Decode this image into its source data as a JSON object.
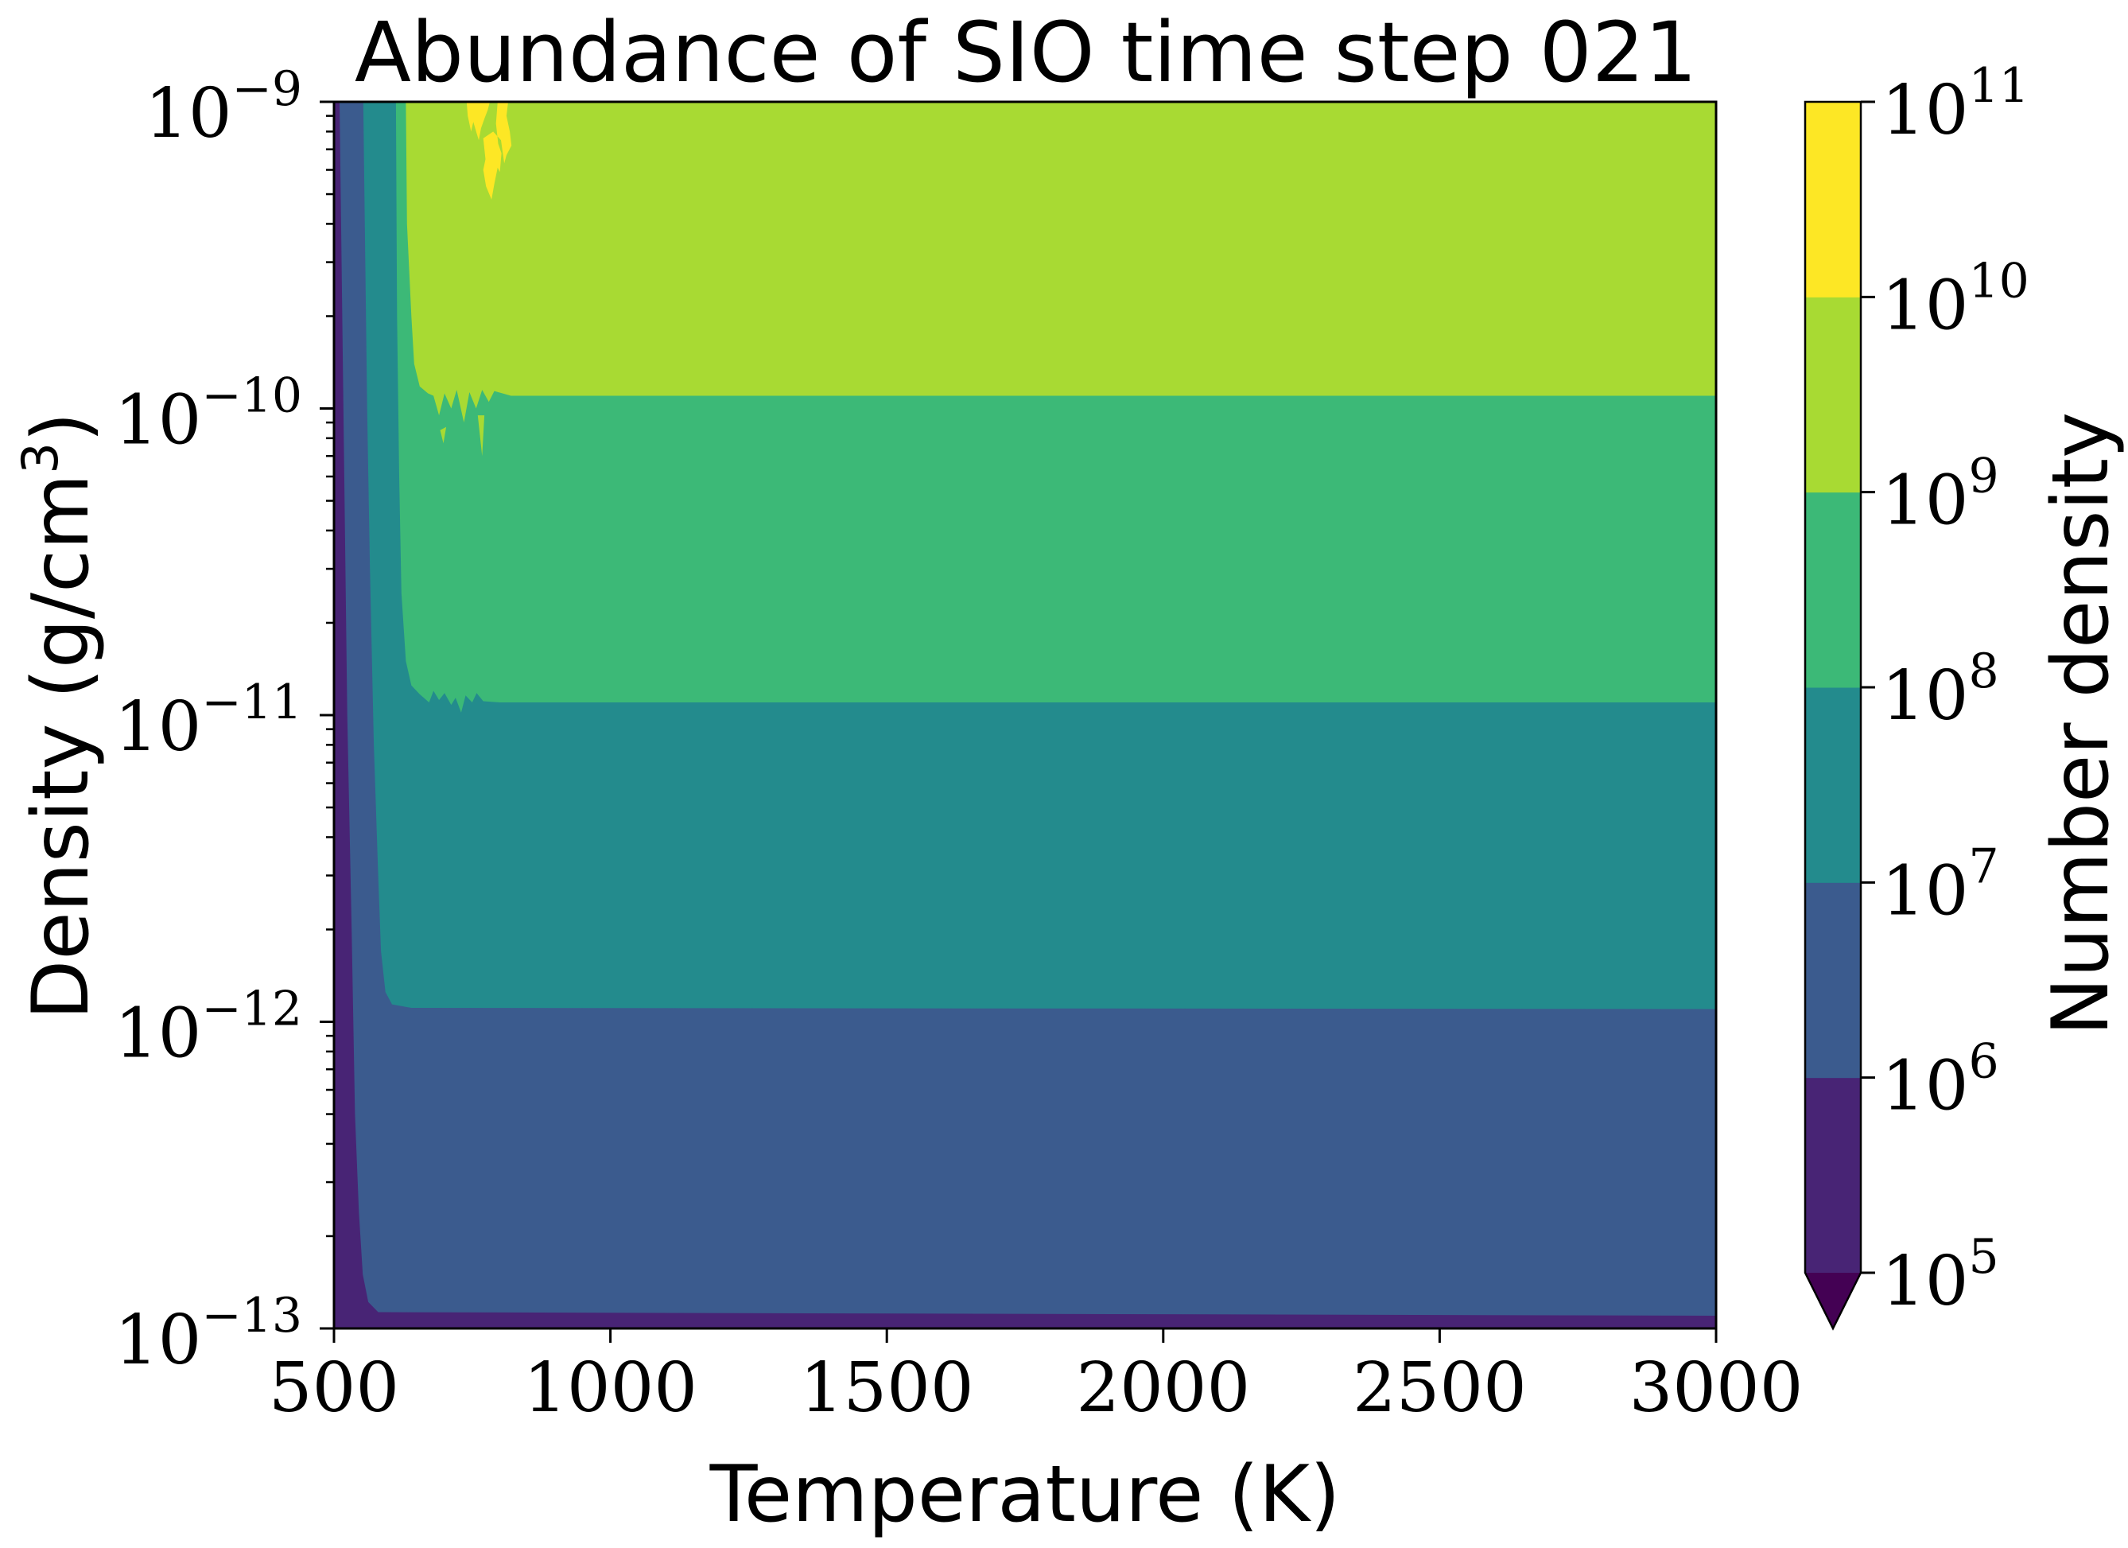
{
  "chart_data": {
    "type": "contourf",
    "title": "Abundance of SIO time step 021",
    "xlabel": "Temperature (K)",
    "ylabel": "Density (g/cm³)",
    "ylabel_base": "Density (g/cm",
    "ylabel_exp": "3",
    "ylabel_close": ")",
    "xlim": [
      500,
      3000
    ],
    "ylim": [
      1e-13,
      1e-09
    ],
    "yscale": "log",
    "grid": false,
    "x_ticks": [
      {
        "value": 500,
        "label": "500"
      },
      {
        "value": 1000,
        "label": "1000"
      },
      {
        "value": 1500,
        "label": "1500"
      },
      {
        "value": 2000,
        "label": "2000"
      },
      {
        "value": 2500,
        "label": "2500"
      },
      {
        "value": 3000,
        "label": "3000"
      }
    ],
    "y_ticks": [
      {
        "value": 1e-13,
        "base": "10",
        "exp": "−13"
      },
      {
        "value": 1e-12,
        "base": "10",
        "exp": "−12"
      },
      {
        "value": 1e-11,
        "base": "10",
        "exp": "−11"
      },
      {
        "value": 1e-10,
        "base": "10",
        "exp": "−10"
      },
      {
        "value": 1e-09,
        "base": "10",
        "exp": "−9"
      }
    ],
    "colorbar": {
      "label": "Number density",
      "scale": "log",
      "extend": "min",
      "under_color": "#440154",
      "levels": [
        {
          "exp": "5",
          "value": 100000.0
        },
        {
          "exp": "6",
          "value": 1000000.0
        },
        {
          "exp": "7",
          "value": 10000000.0
        },
        {
          "exp": "8",
          "value": 100000000.0
        },
        {
          "exp": "9",
          "value": 1000000000.0
        },
        {
          "exp": "10",
          "value": 10000000000.0
        },
        {
          "exp": "11",
          "value": 100000000000.0
        }
      ],
      "tick_base": "10",
      "band_colors": [
        "#482475",
        "#3b5b8e",
        "#238b8d",
        "#3cb977",
        "#a8da33",
        "#fde725"
      ]
    },
    "regions": [
      {
        "range": [
          100000.0,
          1000000.0
        ],
        "color": "#482475",
        "description": "lowest-density strip and T < ~560 K"
      },
      {
        "range": [
          1000000.0,
          10000000.0
        ],
        "color": "#3b5b8e",
        "density_range": [
          1.1e-13,
          1.1e-12
        ]
      },
      {
        "range": [
          10000000.0,
          100000000.0
        ],
        "color": "#238b8d",
        "density_range": [
          1.1e-12,
          1.1e-11
        ]
      },
      {
        "range": [
          100000000.0,
          1000000000.0
        ],
        "color": "#3cb977",
        "density_range": [
          1.1e-11,
          1.1e-10
        ]
      },
      {
        "range": [
          1000000000.0,
          10000000000.0
        ],
        "color": "#a8da33",
        "density_range": [
          1.1e-10,
          1e-09
        ]
      },
      {
        "range": [
          10000000000.0,
          100000000000.0
        ],
        "color": "#fde725",
        "temperature_range": [
          730,
          830
        ],
        "density_range": [
          5e-10,
          1e-09
        ]
      }
    ]
  }
}
